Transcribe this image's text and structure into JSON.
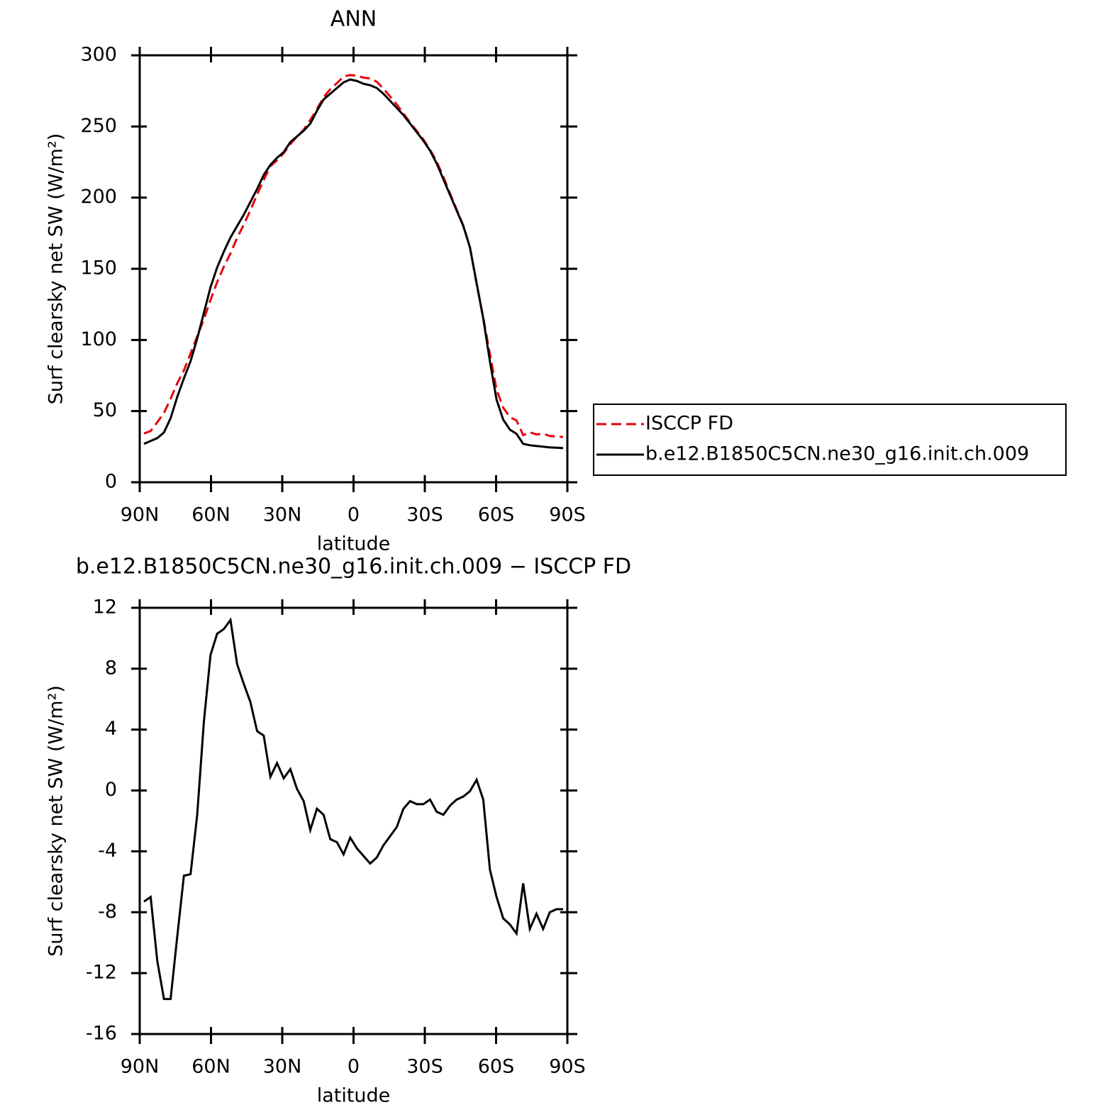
{
  "chart_data": [
    {
      "type": "line",
      "title": "ANN",
      "ylabel": "Surf clearsky net SW (W/m²)",
      "xlabel": "latitude",
      "x": [
        88.2,
        85.4,
        82.6,
        79.8,
        77,
        74.2,
        71.4,
        68.6,
        65.8,
        63,
        60.2,
        57.4,
        54.6,
        51.8,
        49,
        46.2,
        43.4,
        40.6,
        37.8,
        35,
        32.2,
        29.4,
        26.6,
        23.8,
        21,
        18.2,
        15.4,
        12.6,
        9.8,
        7,
        4.2,
        1.4,
        -1.4,
        -4.2,
        -7,
        -9.8,
        -12.6,
        -15.4,
        -18.2,
        -21,
        -23.8,
        -26.6,
        -29.4,
        -32.2,
        -35,
        -37.8,
        -40.6,
        -43.4,
        -46.2,
        -49,
        -51.8,
        -54.6,
        -57.4,
        -60.2,
        -63,
        -65.8,
        -68.6,
        -71.4,
        -74.2,
        -77,
        -79.8,
        -82.6,
        -85.4,
        -88.2
      ],
      "series": [
        {
          "name": "ISCCP FD",
          "color": "#e8000b",
          "line_style": "dashed",
          "values": [
            34.3,
            36,
            42.2,
            48.7,
            58.7,
            69.6,
            78.6,
            90.5,
            102.6,
            114.5,
            128.1,
            140.7,
            151.4,
            160.8,
            171.7,
            181,
            191.2,
            202.1,
            212.4,
            222.1,
            226.2,
            231.2,
            237.6,
            242.9,
            247.7,
            254.6,
            262.2,
            270.6,
            276.2,
            280.4,
            285.2,
            286.1,
            285.8,
            284.3,
            283.8,
            281.4,
            276.6,
            271,
            265.4,
            259.2,
            252.7,
            246.9,
            240.9,
            233.6,
            225.4,
            214.6,
            203,
            191.6,
            180.4,
            165,
            139.3,
            115.6,
            90.2,
            65,
            52.4,
            45.8,
            43.4,
            33.1,
            35.1,
            33.6,
            34.1,
            32.5,
            32.1,
            31.8
          ]
        },
        {
          "name": "b.e12.B1850C5CN.ne30_g16.init.ch.009",
          "color": "#000000",
          "line_style": "solid",
          "values": [
            27,
            29,
            31,
            35,
            45,
            60,
            73,
            85,
            101,
            119,
            137,
            151,
            162,
            172,
            180,
            188,
            197,
            206,
            216,
            223,
            228,
            232,
            239,
            243,
            247,
            252,
            261,
            269,
            273,
            277,
            281,
            283,
            282,
            280,
            279,
            277,
            273,
            268,
            263,
            258,
            252,
            246,
            240,
            233,
            224,
            213,
            202,
            191,
            180,
            165,
            140,
            115,
            85,
            58,
            44,
            37,
            34,
            27,
            26,
            25.5,
            25,
            24.5,
            24.3,
            24
          ]
        }
      ],
      "xlim": [
        90,
        -90
      ],
      "xticks": [
        {
          "value": 90,
          "label": "90N"
        },
        {
          "value": 60,
          "label": "60N"
        },
        {
          "value": 30,
          "label": "30N"
        },
        0,
        {
          "value": -30,
          "label": "30S"
        },
        {
          "value": -60,
          "label": "60S"
        },
        {
          "value": -90,
          "label": "90S"
        }
      ],
      "ylim": [
        0,
        300
      ],
      "yticks": [
        0,
        50,
        100,
        150,
        200,
        250,
        300
      ],
      "legend": "right"
    },
    {
      "type": "line",
      "title": "b.e12.B1850C5CN.ne30_g16.init.ch.009 − ISCCP FD",
      "ylabel": "Surf clearsky net SW (W/m²)",
      "xlabel": "latitude",
      "x": [
        88.2,
        85.4,
        82.6,
        79.8,
        77,
        74.2,
        71.4,
        68.6,
        65.8,
        63,
        60.2,
        57.4,
        54.6,
        51.8,
        49,
        46.2,
        43.4,
        40.6,
        37.8,
        35,
        32.2,
        29.4,
        26.6,
        23.8,
        21,
        18.2,
        15.4,
        12.6,
        9.8,
        7,
        4.2,
        1.4,
        -1.4,
        -4.2,
        -7,
        -9.8,
        -12.6,
        -15.4,
        -18.2,
        -21,
        -23.8,
        -26.6,
        -29.4,
        -32.2,
        -35,
        -37.8,
        -40.6,
        -43.4,
        -46.2,
        -49,
        -51.8,
        -54.6,
        -57.4,
        -60.2,
        -63,
        -65.8,
        -68.6,
        -71.4,
        -74.2,
        -77,
        -79.8,
        -82.6,
        -85.4,
        -88.2
      ],
      "values": [
        -7.3,
        -7,
        -11.2,
        -13.7,
        -13.7,
        -9.6,
        -5.6,
        -5.5,
        -1.6,
        4.5,
        8.9,
        10.3,
        10.6,
        11.2,
        8.3,
        7,
        5.8,
        3.9,
        3.6,
        0.9,
        1.8,
        0.8,
        1.4,
        0.1,
        -0.7,
        -2.6,
        -1.2,
        -1.6,
        -3.2,
        -3.4,
        -4.2,
        -3.1,
        -3.8,
        -4.3,
        -4.8,
        -4.4,
        -3.6,
        -3,
        -2.4,
        -1.2,
        -0.7,
        -0.9,
        -0.9,
        -0.6,
        -1.4,
        -1.6,
        -1,
        -0.6,
        -0.4,
        -0.05,
        0.7,
        -0.6,
        -5.2,
        -7,
        -8.4,
        -8.8,
        -9.4,
        -6.1,
        -9.1,
        -8.1,
        -9.1,
        -8,
        -7.8,
        -7.8
      ],
      "color": "#000000",
      "xlim": [
        90,
        -90
      ],
      "xticks": [
        {
          "value": 90,
          "label": "90N"
        },
        {
          "value": 60,
          "label": "60N"
        },
        {
          "value": 30,
          "label": "30N"
        },
        0,
        {
          "value": -30,
          "label": "30S"
        },
        {
          "value": -60,
          "label": "60S"
        },
        {
          "value": -90,
          "label": "90S"
        }
      ],
      "ylim": [
        -16,
        12
      ],
      "yticks": [
        -16,
        -12,
        -8,
        -4,
        0,
        4,
        8,
        12
      ]
    }
  ]
}
